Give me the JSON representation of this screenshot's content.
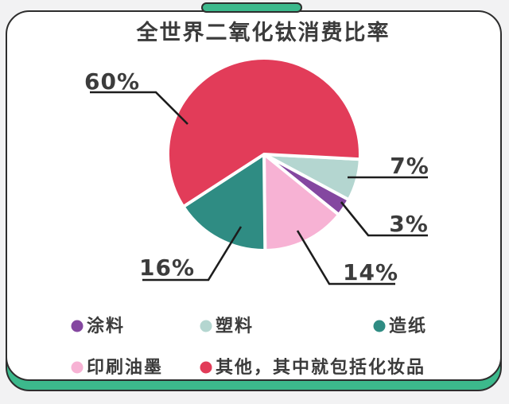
{
  "page": {
    "background": "#f2f2f3"
  },
  "frame": {
    "card_color": "#ffffff",
    "accent_green": "#3cb98c",
    "border_color": "#2d2d2d"
  },
  "header": {
    "title": "全世界二氧化钛消费比率"
  },
  "chart_data": {
    "type": "pie",
    "title": "全世界二氧化钛消费比率",
    "unit": "%",
    "start_angle_deg": 3,
    "direction": "clockwise",
    "legend_position": "bottom",
    "slices": [
      {
        "label": "塑料",
        "value": 7,
        "pct_label": "7%",
        "color": "#b4d6d0"
      },
      {
        "label": "涂料",
        "value": 3,
        "pct_label": "3%",
        "color": "#8447a0"
      },
      {
        "label": "印刷油墨",
        "value": 14,
        "pct_label": "14%",
        "color": "#f7b2d4"
      },
      {
        "label": "造纸",
        "value": 16,
        "pct_label": "16%",
        "color": "#2f8c83"
      },
      {
        "label": "其他，其中就包括化妆品",
        "value": 60,
        "pct_label": "60%",
        "color": "#e23c59"
      }
    ]
  },
  "legend": {
    "items": [
      {
        "label": "涂料",
        "color": "#8447a0"
      },
      {
        "label": "塑料",
        "color": "#b4d6d0"
      },
      {
        "label": "造纸",
        "color": "#2f8c83"
      },
      {
        "label": "印刷油墨",
        "color": "#f7b2d4"
      },
      {
        "label": "其他，其中就包括化妆品",
        "color": "#e23c59"
      }
    ]
  }
}
